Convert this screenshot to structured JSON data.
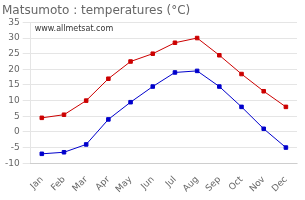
{
  "chart_data": {
    "type": "line",
    "title": "Matsumoto : temperatures (°C)",
    "categories": [
      "Jan",
      "Feb",
      "Mar",
      "Apr",
      "May",
      "Jun",
      "Jul",
      "Aug",
      "Sep",
      "Oct",
      "Nov",
      "Dec"
    ],
    "series": [
      {
        "color": "#cc0000",
        "marker": "square",
        "values": [
          4.5,
          5.5,
          10.0,
          17.0,
          22.5,
          25.0,
          28.5,
          30.0,
          24.5,
          18.5,
          13.0,
          8.0
        ]
      },
      {
        "color": "#0000cc",
        "marker": "square",
        "values": [
          -7.0,
          -6.5,
          -4.0,
          4.0,
          9.5,
          14.5,
          19.0,
          19.5,
          14.5,
          8.0,
          1.0,
          -5.0
        ]
      }
    ],
    "ylim": [
      -10,
      35
    ],
    "yticks": [
      -10,
      -5,
      0,
      5,
      10,
      15,
      20,
      25,
      30,
      35
    ],
    "grid": true,
    "annotations": [
      "www.allmetsat.com"
    ]
  }
}
